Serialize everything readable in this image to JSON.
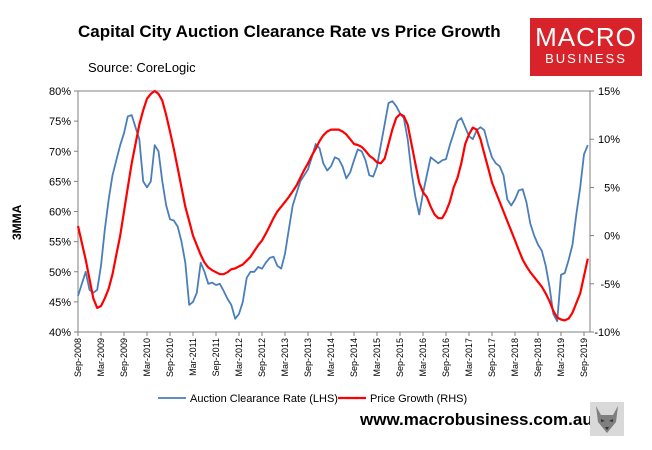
{
  "title": "Capital City Auction Clearance Rate vs Price Growth",
  "source": "Source: CoreLogic",
  "badge": {
    "line1": "MACRO",
    "line2": "BUSINESS"
  },
  "ylabel": "3MMA",
  "website": "www.macrobusiness.com.au",
  "colors": {
    "lhs": "#4a7ebb",
    "rhs": "#ff0000",
    "badge": "#d8232a"
  },
  "chart_data": {
    "type": "line",
    "title": "Capital City Auction Clearance Rate vs Price Growth",
    "ylabel": "3MMA",
    "ylim": [
      40,
      80
    ],
    "y2lim": [
      -10,
      15
    ],
    "y_ticks": [
      "80%",
      "75%",
      "70%",
      "65%",
      "60%",
      "55%",
      "50%",
      "45%",
      "40%"
    ],
    "y2_ticks": [
      "15%",
      "10%",
      "5%",
      "0%",
      "-5%",
      "-10%"
    ],
    "x_start": "Sep-2008",
    "x_end": "Sep-2019",
    "x_ticks": [
      "Sep-2008",
      "Mar-2009",
      "Sep-2009",
      "Mar-2010",
      "Sep-2010",
      "Mar-2011",
      "Sep-2011",
      "Mar-2012",
      "Sep-2012",
      "Mar-2013",
      "Sep-2013",
      "Mar-2014",
      "Sep-2014",
      "Mar-2015",
      "Sep-2015",
      "Mar-2016",
      "Sep-2016",
      "Mar-2017",
      "Sep-2017",
      "Mar-2018",
      "Sep-2018",
      "Mar-2019",
      "Sep-2019"
    ],
    "legend_position": "bottom",
    "series": [
      {
        "name": "Auction Clearance Rate (LHS)",
        "axis": "left",
        "points": [
          [
            "Sep-2008",
            46
          ],
          [
            "Nov-2008",
            50
          ],
          [
            "Dec-2008",
            47
          ],
          [
            "Jan-2009",
            46.5
          ],
          [
            "Feb-2009",
            47
          ],
          [
            "Mar-2009",
            51
          ],
          [
            "Apr-2009",
            57
          ],
          [
            "May-2009",
            62
          ],
          [
            "Jun-2009",
            66
          ],
          [
            "Jul-2009",
            68.5
          ],
          [
            "Aug-2009",
            71
          ],
          [
            "Sep-2009",
            73
          ],
          [
            "Oct-2009",
            75.8
          ],
          [
            "Nov-2009",
            76
          ],
          [
            "Dec-2009",
            74
          ],
          [
            "Jan-2010",
            72
          ],
          [
            "Feb-2010",
            65
          ],
          [
            "Mar-2010",
            64
          ],
          [
            "Apr-2010",
            65
          ],
          [
            "May-2010",
            71
          ],
          [
            "Jun-2010",
            70
          ],
          [
            "Jul-2010",
            65
          ],
          [
            "Aug-2010",
            61
          ],
          [
            "Sep-2010",
            58.7
          ],
          [
            "Oct-2010",
            58.5
          ],
          [
            "Nov-2010",
            57.5
          ],
          [
            "Dec-2010",
            55
          ],
          [
            "Jan-2011",
            51.5
          ],
          [
            "Feb-2011",
            44.5
          ],
          [
            "Mar-2011",
            45
          ],
          [
            "Apr-2011",
            46.5
          ],
          [
            "May-2011",
            51.5
          ],
          [
            "Jun-2011",
            50
          ],
          [
            "Jul-2011",
            48
          ],
          [
            "Aug-2011",
            48.2
          ],
          [
            "Sep-2011",
            47.8
          ],
          [
            "Oct-2011",
            48
          ],
          [
            "Nov-2011",
            46.8
          ],
          [
            "Dec-2011",
            45.5
          ],
          [
            "Jan-2012",
            44.5
          ],
          [
            "Feb-2012",
            42.2
          ],
          [
            "Mar-2012",
            43
          ],
          [
            "Apr-2012",
            45
          ],
          [
            "May-2012",
            49
          ],
          [
            "Jun-2012",
            50
          ],
          [
            "Jul-2012",
            50
          ],
          [
            "Aug-2012",
            50.8
          ],
          [
            "Sep-2012",
            50.5
          ],
          [
            "Oct-2012",
            51.5
          ],
          [
            "Nov-2012",
            52.3
          ],
          [
            "Dec-2012",
            52.5
          ],
          [
            "Jan-2013",
            51
          ],
          [
            "Feb-2013",
            50.5
          ],
          [
            "Mar-2013",
            53
          ],
          [
            "Apr-2013",
            57
          ],
          [
            "May-2013",
            61
          ],
          [
            "Jun-2013",
            63
          ],
          [
            "Jul-2013",
            65
          ],
          [
            "Aug-2013",
            66
          ],
          [
            "Sep-2013",
            67
          ],
          [
            "Oct-2013",
            69
          ],
          [
            "Nov-2013",
            71.2
          ],
          [
            "Dec-2013",
            70.5
          ],
          [
            "Jan-2014",
            68
          ],
          [
            "Feb-2014",
            66.8
          ],
          [
            "Mar-2014",
            67.5
          ],
          [
            "Apr-2014",
            69
          ],
          [
            "May-2014",
            68.7
          ],
          [
            "Jun-2014",
            67.5
          ],
          [
            "Jul-2014",
            65.5
          ],
          [
            "Aug-2014",
            66.5
          ],
          [
            "Sep-2014",
            68.5
          ],
          [
            "Oct-2014",
            70.3
          ],
          [
            "Nov-2014",
            70
          ],
          [
            "Dec-2014",
            68.5
          ],
          [
            "Jan-2015",
            66
          ],
          [
            "Feb-2015",
            65.8
          ],
          [
            "Mar-2015",
            67.5
          ],
          [
            "Apr-2015",
            71
          ],
          [
            "May-2015",
            74.5
          ],
          [
            "Jun-2015",
            78
          ],
          [
            "Jul-2015",
            78.3
          ],
          [
            "Aug-2015",
            77.5
          ],
          [
            "Sep-2015",
            76.3
          ],
          [
            "Oct-2015",
            75.5
          ],
          [
            "Nov-2015",
            72
          ],
          [
            "Dec-2015",
            66.5
          ],
          [
            "Jan-2016",
            62.5
          ],
          [
            "Feb-2016",
            59.5
          ],
          [
            "Mar-2016",
            63
          ],
          [
            "Apr-2016",
            66
          ],
          [
            "May-2016",
            69
          ],
          [
            "Jun-2016",
            68.5
          ],
          [
            "Jul-2016",
            68
          ],
          [
            "Aug-2016",
            68.5
          ],
          [
            "Sep-2016",
            68.7
          ],
          [
            "Oct-2016",
            71
          ],
          [
            "Nov-2016",
            73
          ],
          [
            "Dec-2016",
            75
          ],
          [
            "Jan-2017",
            75.5
          ],
          [
            "Feb-2017",
            74
          ],
          [
            "Mar-2017",
            72.5
          ],
          [
            "Apr-2017",
            72
          ],
          [
            "May-2017",
            73.5
          ],
          [
            "Jun-2017",
            74
          ],
          [
            "Jul-2017",
            73.5
          ],
          [
            "Aug-2017",
            71
          ],
          [
            "Sep-2017",
            69
          ],
          [
            "Oct-2017",
            68
          ],
          [
            "Nov-2017",
            67.5
          ],
          [
            "Dec-2017",
            66
          ],
          [
            "Jan-2018",
            62
          ],
          [
            "Feb-2018",
            61
          ],
          [
            "Mar-2018",
            62
          ],
          [
            "Apr-2018",
            63.5
          ],
          [
            "May-2018",
            63.7
          ],
          [
            "Jun-2018",
            61.5
          ],
          [
            "Jul-2018",
            58
          ],
          [
            "Aug-2018",
            56
          ],
          [
            "Sep-2018",
            54.5
          ],
          [
            "Oct-2018",
            53.5
          ],
          [
            "Nov-2018",
            51
          ],
          [
            "Dec-2018",
            47.5
          ],
          [
            "Jan-2019",
            43
          ],
          [
            "Feb-2019",
            41.8
          ],
          [
            "Mar-2019",
            49.5
          ],
          [
            "Apr-2019",
            49.8
          ],
          [
            "May-2019",
            52
          ],
          [
            "Jun-2019",
            54.5
          ],
          [
            "Jul-2019",
            59.5
          ],
          [
            "Aug-2019",
            64
          ],
          [
            "Sep-2019",
            69.5
          ],
          [
            "Oct-2019",
            71
          ]
        ]
      },
      {
        "name": "Price Growth (RHS)",
        "axis": "right",
        "points": [
          [
            "Sep-2008",
            1
          ],
          [
            "Nov-2008",
            -2.5
          ],
          [
            "Dec-2008",
            -4.5
          ],
          [
            "Jan-2009",
            -6.5
          ],
          [
            "Feb-2009",
            -7.5
          ],
          [
            "Mar-2009",
            -7.3
          ],
          [
            "Apr-2009",
            -6.5
          ],
          [
            "May-2009",
            -5.5
          ],
          [
            "Jun-2009",
            -4
          ],
          [
            "Jul-2009",
            -2
          ],
          [
            "Aug-2009",
            0
          ],
          [
            "Sep-2009",
            2.5
          ],
          [
            "Oct-2009",
            5
          ],
          [
            "Nov-2009",
            7.5
          ],
          [
            "Dec-2009",
            9.5
          ],
          [
            "Jan-2010",
            11.5
          ],
          [
            "Feb-2010",
            13
          ],
          [
            "Mar-2010",
            14.2
          ],
          [
            "Apr-2010",
            14.7
          ],
          [
            "May-2010",
            15
          ],
          [
            "Jun-2010",
            14.7
          ],
          [
            "Jul-2010",
            14
          ],
          [
            "Aug-2010",
            12.5
          ],
          [
            "Sep-2010",
            10.8
          ],
          [
            "Oct-2010",
            9
          ],
          [
            "Nov-2010",
            7
          ],
          [
            "Dec-2010",
            5
          ],
          [
            "Jan-2011",
            3
          ],
          [
            "Feb-2011",
            1.5
          ],
          [
            "Mar-2011",
            0
          ],
          [
            "Apr-2011",
            -1
          ],
          [
            "May-2011",
            -2
          ],
          [
            "Jun-2011",
            -2.8
          ],
          [
            "Jul-2011",
            -3.3
          ],
          [
            "Aug-2011",
            -3.6
          ],
          [
            "Sep-2011",
            -3.8
          ],
          [
            "Oct-2011",
            -4
          ],
          [
            "Nov-2011",
            -4
          ],
          [
            "Dec-2011",
            -3.8
          ],
          [
            "Jan-2012",
            -3.5
          ],
          [
            "Feb-2012",
            -3.4
          ],
          [
            "Mar-2012",
            -3.2
          ],
          [
            "Apr-2012",
            -3
          ],
          [
            "May-2012",
            -2.6
          ],
          [
            "Jun-2012",
            -2.2
          ],
          [
            "Jul-2012",
            -1.6
          ],
          [
            "Aug-2012",
            -1
          ],
          [
            "Sep-2012",
            -0.5
          ],
          [
            "Oct-2012",
            0.2
          ],
          [
            "Nov-2012",
            1
          ],
          [
            "Dec-2012",
            1.8
          ],
          [
            "Jan-2013",
            2.5
          ],
          [
            "Feb-2013",
            3
          ],
          [
            "Mar-2013",
            3.5
          ],
          [
            "Apr-2013",
            4
          ],
          [
            "May-2013",
            4.6
          ],
          [
            "Jun-2013",
            5.2
          ],
          [
            "Jul-2013",
            6
          ],
          [
            "Aug-2013",
            6.8
          ],
          [
            "Sep-2013",
            7.5
          ],
          [
            "Oct-2013",
            8.3
          ],
          [
            "Nov-2013",
            9
          ],
          [
            "Dec-2013",
            9.8
          ],
          [
            "Jan-2014",
            10.4
          ],
          [
            "Feb-2014",
            10.8
          ],
          [
            "Mar-2014",
            11
          ],
          [
            "Apr-2014",
            11
          ],
          [
            "May-2014",
            11
          ],
          [
            "Jun-2014",
            10.8
          ],
          [
            "Jul-2014",
            10.5
          ],
          [
            "Aug-2014",
            10
          ],
          [
            "Sep-2014",
            9.5
          ],
          [
            "Oct-2014",
            9.4
          ],
          [
            "Nov-2014",
            9.2
          ],
          [
            "Dec-2014",
            8.8
          ],
          [
            "Jan-2015",
            8.3
          ],
          [
            "Feb-2015",
            8
          ],
          [
            "Mar-2015",
            7.6
          ],
          [
            "Apr-2015",
            7.5
          ],
          [
            "May-2015",
            8
          ],
          [
            "Jun-2015",
            9.5
          ],
          [
            "Jul-2015",
            11
          ],
          [
            "Aug-2015",
            12.2
          ],
          [
            "Sep-2015",
            12.6
          ],
          [
            "Oct-2015",
            12.4
          ],
          [
            "Nov-2015",
            11.5
          ],
          [
            "Dec-2015",
            9.5
          ],
          [
            "Jan-2016",
            7.5
          ],
          [
            "Feb-2016",
            5.5
          ],
          [
            "Mar-2016",
            4.5
          ],
          [
            "Apr-2016",
            4
          ],
          [
            "May-2016",
            3
          ],
          [
            "Jun-2016",
            2.2
          ],
          [
            "Jul-2016",
            1.8
          ],
          [
            "Aug-2016",
            1.8
          ],
          [
            "Sep-2016",
            2.5
          ],
          [
            "Oct-2016",
            3.5
          ],
          [
            "Nov-2016",
            5
          ],
          [
            "Dec-2016",
            6
          ],
          [
            "Jan-2017",
            7.5
          ],
          [
            "Feb-2017",
            9.5
          ],
          [
            "Mar-2017",
            10.5
          ],
          [
            "Apr-2017",
            11.2
          ],
          [
            "May-2017",
            11
          ],
          [
            "Jun-2017",
            10
          ],
          [
            "Jul-2017",
            8.5
          ],
          [
            "Aug-2017",
            7
          ],
          [
            "Sep-2017",
            5.5
          ],
          [
            "Oct-2017",
            4.5
          ],
          [
            "Nov-2017",
            3.5
          ],
          [
            "Dec-2017",
            2.5
          ],
          [
            "Jan-2018",
            1.5
          ],
          [
            "Feb-2018",
            0.5
          ],
          [
            "Mar-2018",
            -0.5
          ],
          [
            "Apr-2018",
            -1.5
          ],
          [
            "May-2018",
            -2.5
          ],
          [
            "Jun-2018",
            -3.2
          ],
          [
            "Jul-2018",
            -3.8
          ],
          [
            "Aug-2018",
            -4.3
          ],
          [
            "Sep-2018",
            -4.8
          ],
          [
            "Oct-2018",
            -5.3
          ],
          [
            "Nov-2018",
            -6
          ],
          [
            "Dec-2018",
            -6.8
          ],
          [
            "Jan-2019",
            -7.8
          ],
          [
            "Feb-2019",
            -8.5
          ],
          [
            "Mar-2019",
            -8.7
          ],
          [
            "Apr-2019",
            -8.8
          ],
          [
            "May-2019",
            -8.6
          ],
          [
            "Jun-2019",
            -8
          ],
          [
            "Jul-2019",
            -7
          ],
          [
            "Aug-2019",
            -6
          ],
          [
            "Sep-2019",
            -4.2
          ],
          [
            "Oct-2019",
            -2.4
          ]
        ]
      }
    ]
  }
}
